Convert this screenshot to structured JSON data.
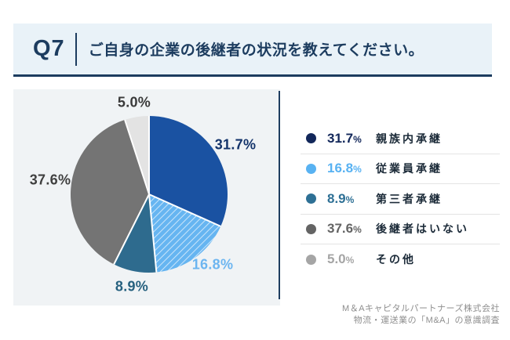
{
  "header": {
    "q_label": "Q7",
    "question": "ご自身の企業の後継者の状況を教えてください。"
  },
  "chart_data": {
    "type": "pie",
    "title": "ご自身の企業の後継者の状況を教えてください。",
    "categories": [
      "親族内承継",
      "従業員承継",
      "第三者承継",
      "後継者はいない",
      "その他"
    ],
    "values": [
      31.7,
      16.8,
      8.9,
      37.6,
      5.0
    ],
    "unit": "%",
    "slice_labels": [
      "31.7%",
      "16.8%",
      "8.9%",
      "37.6%",
      "5.0%"
    ],
    "colors": [
      "#1a52a2",
      "#66b5f1",
      "#2e6b8e",
      "#747474",
      "#e3e3e3"
    ],
    "label_colors": [
      "#14346b",
      "#6cb5f0",
      "#26617f",
      "#3f3f3f",
      "#3a3a3a"
    ],
    "hatched": [
      false,
      true,
      false,
      false,
      false
    ],
    "start_angle_deg": -90,
    "direction": "clockwise",
    "legend_position": "right"
  },
  "legend": {
    "items": [
      {
        "value": "31.7",
        "unit": "%",
        "label": "親族内承継",
        "color": "#12275a"
      },
      {
        "value": "16.8",
        "unit": "%",
        "label": "従業員承継",
        "color": "#58b2f2"
      },
      {
        "value": "8.9",
        "unit": "%",
        "label": "第三者承継",
        "color": "#2e7095"
      },
      {
        "value": "37.6",
        "unit": "%",
        "label": "後継者はいない",
        "color": "#646464"
      },
      {
        "value": "5.0",
        "unit": "%",
        "label": "その他",
        "color": "#a5a5a5"
      }
    ]
  },
  "footer": {
    "line1": "M＆Aキャピタルパートナーズ株式会社",
    "line2": "物流・運送業の「M&A」の意識調査"
  },
  "theme": {
    "navy": "#1c3c5f",
    "header_bg": "#e9f2f8",
    "panel_bg": "#f0f3f5",
    "separator": "#e4e4e4"
  }
}
